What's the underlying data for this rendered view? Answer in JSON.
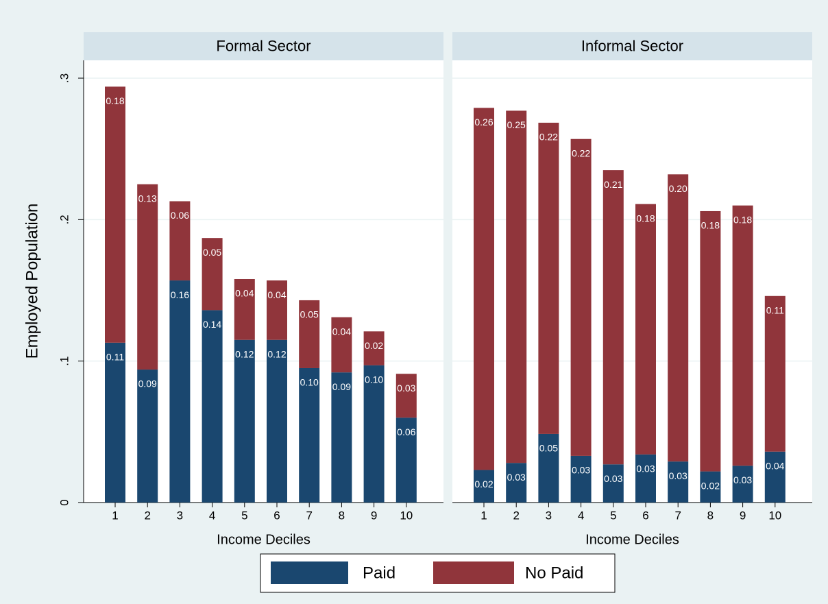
{
  "chart_data": [
    {
      "type": "bar",
      "stacked": true,
      "title": "Formal Sector",
      "x_label": "Income Deciles",
      "y_label": "Employed Population",
      "categories": [
        "1",
        "2",
        "3",
        "4",
        "5",
        "6",
        "7",
        "8",
        "9",
        "10"
      ],
      "ylim": [
        0,
        0.3
      ],
      "yticks": [
        0,
        {
          "value": 0.1,
          "label": ".1"
        },
        {
          "value": 0.2,
          "label": ".2"
        },
        {
          "value": 0.3,
          "label": ".3"
        }
      ],
      "grid": true,
      "legend": "bottom",
      "series": [
        {
          "name": "Paid",
          "color": "#1a476f",
          "values": [
            0.113,
            0.094,
            0.157,
            0.136,
            0.115,
            0.115,
            0.095,
            0.092,
            0.097,
            0.06
          ],
          "value_labels": [
            "0.11",
            "0.09",
            "0.16",
            "0.14",
            "0.12",
            "0.12",
            "0.10",
            "0.09",
            "0.10",
            "0.06"
          ]
        },
        {
          "name": "No Paid",
          "color": "#90353b",
          "values": [
            0.181,
            0.131,
            0.056,
            0.051,
            0.043,
            0.042,
            0.048,
            0.039,
            0.024,
            0.031
          ],
          "value_labels": [
            "0.18",
            "0.13",
            "0.06",
            "0.05",
            "0.04",
            "0.04",
            "0.05",
            "0.04",
            "0.02",
            "0.03"
          ]
        }
      ]
    },
    {
      "type": "bar",
      "stacked": true,
      "title": "Informal Sector",
      "x_label": "Income Deciles",
      "categories": [
        "1",
        "2",
        "3",
        "4",
        "5",
        "6",
        "7",
        "8",
        "9",
        "10"
      ],
      "ylim": [
        0,
        0.3
      ],
      "yticks": [
        0,
        0.1,
        0.2,
        0.3
      ],
      "grid": true,
      "series": [
        {
          "color": "#1a476f",
          "values": [
            0.023,
            0.028,
            0.0485,
            0.033,
            0.027,
            0.034,
            0.029,
            0.022,
            0.026,
            0.036
          ],
          "value_labels": [
            "0.02",
            "0.03",
            "0.05",
            "0.03",
            "0.03",
            "0.03",
            "0.03",
            "0.02",
            "0.03",
            "0.04"
          ]
        },
        {
          "color": "#90353b",
          "values": [
            0.256,
            0.249,
            0.22,
            0.224,
            0.208,
            0.177,
            0.203,
            0.184,
            0.184,
            0.11
          ],
          "value_labels": [
            "0.26",
            "0.25",
            "0.22",
            "0.22",
            "0.21",
            "0.18",
            "0.20",
            "0.18",
            "0.18",
            "0.11"
          ]
        }
      ]
    }
  ]
}
